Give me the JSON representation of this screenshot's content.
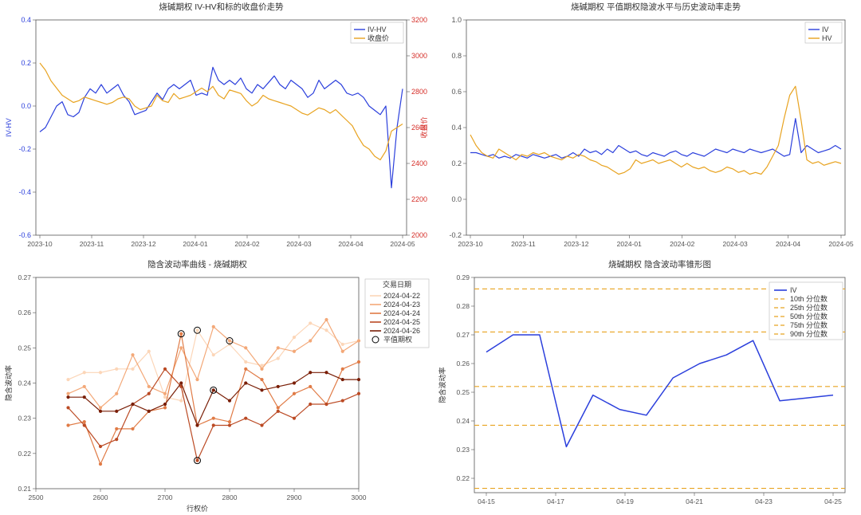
{
  "panel_tl": {
    "title": "烧碱期权 IV-HV和标的收盘价走势",
    "x_labels": [
      "2023-10",
      "2023-11",
      "2023-12",
      "2024-01",
      "2024-02",
      "2024-03",
      "2024-04",
      "2024-05"
    ],
    "y_left": {
      "label": "IV-HV",
      "min": -0.6,
      "max": 0.4,
      "ticks": [
        -0.6,
        -0.4,
        -0.2,
        0.0,
        0.2,
        0.4
      ],
      "color": "#2b3fdc"
    },
    "y_right": {
      "label": "收盘价",
      "min": 2000,
      "max": 3200,
      "ticks": [
        2000,
        2200,
        2400,
        2600,
        2800,
        3000,
        3200
      ],
      "color": "#d6302a"
    },
    "series": [
      {
        "name": "IV-HV",
        "color": "#2b3fdc",
        "axis": "left",
        "values": [
          -0.12,
          -0.1,
          -0.05,
          0.0,
          0.02,
          -0.04,
          -0.05,
          -0.03,
          0.04,
          0.08,
          0.06,
          0.1,
          0.06,
          0.08,
          0.1,
          0.05,
          0.02,
          -0.04,
          -0.03,
          -0.02,
          0.02,
          0.06,
          0.03,
          0.08,
          0.1,
          0.08,
          0.1,
          0.12,
          0.05,
          0.06,
          0.05,
          0.18,
          0.12,
          0.1,
          0.12,
          0.1,
          0.13,
          0.08,
          0.06,
          0.1,
          0.08,
          0.11,
          0.14,
          0.1,
          0.08,
          0.12,
          0.1,
          0.08,
          0.04,
          0.06,
          0.12,
          0.08,
          0.1,
          0.12,
          0.1,
          0.06,
          0.05,
          0.06,
          0.04,
          0.0,
          -0.02,
          -0.04,
          0.0,
          -0.38,
          -0.1,
          0.08
        ]
      },
      {
        "name": "收盘价",
        "color": "#e8a320",
        "axis": "right",
        "values": [
          2960,
          2920,
          2860,
          2820,
          2780,
          2760,
          2740,
          2750,
          2770,
          2760,
          2750,
          2740,
          2730,
          2740,
          2760,
          2770,
          2760,
          2720,
          2700,
          2710,
          2720,
          2780,
          2750,
          2740,
          2790,
          2760,
          2770,
          2780,
          2800,
          2820,
          2800,
          2830,
          2780,
          2760,
          2810,
          2800,
          2790,
          2750,
          2720,
          2740,
          2780,
          2760,
          2750,
          2740,
          2730,
          2720,
          2700,
          2680,
          2670,
          2690,
          2710,
          2700,
          2680,
          2700,
          2670,
          2640,
          2610,
          2550,
          2500,
          2480,
          2440,
          2420,
          2470,
          2580,
          2600,
          2620
        ]
      }
    ],
    "legend": [
      "IV-HV",
      "收盘价"
    ]
  },
  "panel_tr": {
    "title": "烧碱期权 平值期权隐波水平与历史波动率走势",
    "x_labels": [
      "2023-10",
      "2023-11",
      "2023-12",
      "2024-01",
      "2024-02",
      "2024-03",
      "2024-04",
      "2024-05"
    ],
    "y": {
      "min": -0.2,
      "max": 1.0,
      "ticks": [
        -0.2,
        0.0,
        0.2,
        0.4,
        0.6,
        0.8,
        1.0
      ]
    },
    "series": [
      {
        "name": "IV",
        "color": "#2b3fdc",
        "values": [
          0.26,
          0.26,
          0.25,
          0.24,
          0.25,
          0.23,
          0.24,
          0.23,
          0.25,
          0.24,
          0.23,
          0.25,
          0.24,
          0.23,
          0.24,
          0.25,
          0.23,
          0.24,
          0.26,
          0.24,
          0.28,
          0.26,
          0.27,
          0.25,
          0.28,
          0.26,
          0.3,
          0.28,
          0.26,
          0.27,
          0.25,
          0.24,
          0.26,
          0.25,
          0.24,
          0.26,
          0.27,
          0.25,
          0.24,
          0.26,
          0.25,
          0.24,
          0.26,
          0.28,
          0.27,
          0.26,
          0.28,
          0.27,
          0.26,
          0.28,
          0.27,
          0.26,
          0.27,
          0.28,
          0.26,
          0.24,
          0.25,
          0.45,
          0.26,
          0.3,
          0.28,
          0.26,
          0.27,
          0.28,
          0.3,
          0.28
        ]
      },
      {
        "name": "HV",
        "color": "#e8a320",
        "values": [
          0.36,
          0.3,
          0.26,
          0.24,
          0.23,
          0.28,
          0.26,
          0.24,
          0.22,
          0.25,
          0.24,
          0.26,
          0.25,
          0.26,
          0.24,
          0.23,
          0.22,
          0.24,
          0.23,
          0.25,
          0.24,
          0.22,
          0.21,
          0.19,
          0.18,
          0.16,
          0.14,
          0.15,
          0.17,
          0.22,
          0.2,
          0.21,
          0.22,
          0.2,
          0.21,
          0.22,
          0.2,
          0.18,
          0.2,
          0.18,
          0.17,
          0.18,
          0.16,
          0.15,
          0.16,
          0.18,
          0.17,
          0.15,
          0.16,
          0.14,
          0.15,
          0.14,
          0.18,
          0.24,
          0.3,
          0.45,
          0.58,
          0.63,
          0.44,
          0.22,
          0.2,
          0.21,
          0.19,
          0.2,
          0.21,
          0.2
        ]
      }
    ],
    "legend": [
      "IV",
      "HV"
    ]
  },
  "panel_bl": {
    "title": "隐含波动率曲线 - 烧碱期权",
    "xlabel": "行权价",
    "ylabel": "隐含波动率",
    "x": {
      "min": 2500,
      "max": 3000,
      "ticks": [
        2500,
        2600,
        2700,
        2800,
        2900,
        3000
      ]
    },
    "y": {
      "min": 0.21,
      "max": 0.27,
      "ticks": [
        0.21,
        0.22,
        0.23,
        0.24,
        0.25,
        0.26,
        0.27
      ]
    },
    "strikes": [
      2550,
      2575,
      2600,
      2625,
      2650,
      2675,
      2700,
      2725,
      2750,
      2775,
      2800,
      2825,
      2850,
      2875,
      2900,
      2925,
      2950,
      2975,
      3000
    ],
    "dates": [
      {
        "name": "2024-04-22",
        "color": "#fcd6b8",
        "values": [
          0.241,
          0.243,
          0.243,
          0.244,
          0.244,
          0.249,
          0.236,
          0.235,
          0.255,
          0.248,
          0.251,
          0.246,
          0.245,
          0.247,
          0.253,
          0.257,
          0.255,
          0.251,
          0.252
        ],
        "atm_idx": 8
      },
      {
        "name": "2024-04-23",
        "color": "#f3a878",
        "values": [
          0.237,
          0.239,
          0.233,
          0.237,
          0.248,
          0.239,
          0.237,
          0.25,
          0.241,
          0.256,
          0.252,
          0.25,
          0.244,
          0.25,
          0.249,
          0.252,
          0.258,
          0.249,
          0.252
        ],
        "atm_idx": 10
      },
      {
        "name": "2024-04-24",
        "color": "#e07b46",
        "values": [
          0.228,
          0.229,
          0.217,
          0.227,
          0.227,
          0.232,
          0.233,
          0.254,
          0.228,
          0.23,
          0.229,
          0.244,
          0.241,
          0.233,
          0.237,
          0.239,
          0.234,
          0.244,
          0.246
        ],
        "atm_idx": 7
      },
      {
        "name": "2024-04-25",
        "color": "#bb4a24",
        "values": [
          0.233,
          0.228,
          0.222,
          0.224,
          0.234,
          0.237,
          0.244,
          0.239,
          0.218,
          0.228,
          0.228,
          0.23,
          0.228,
          0.232,
          0.23,
          0.234,
          0.234,
          0.235,
          0.237
        ],
        "atm_idx": 8
      },
      {
        "name": "2024-04-26",
        "color": "#7a1f07",
        "values": [
          0.236,
          0.236,
          0.232,
          0.232,
          0.234,
          0.232,
          0.234,
          0.24,
          0.228,
          0.238,
          0.235,
          0.24,
          0.238,
          0.239,
          0.24,
          0.243,
          0.243,
          0.241,
          0.241
        ],
        "atm_idx": 9
      }
    ],
    "legend_title": "交易日期",
    "legend_atm": "平值期权"
  },
  "panel_br": {
    "title": "烧碱期权 隐含波动率锥形图",
    "ylabel": "隐含波动率",
    "x_labels": [
      "04-15",
      "04-17",
      "04-19",
      "04-21",
      "04-23",
      "04-25"
    ],
    "y": {
      "min": 0.215,
      "max": 0.29,
      "ticks": [
        0.22,
        0.23,
        0.24,
        0.25,
        0.26,
        0.27,
        0.28,
        0.29
      ]
    },
    "iv": {
      "color": "#2b3fdc",
      "values": [
        0.264,
        0.27,
        0.27,
        0.231,
        0.249,
        0.244,
        0.242,
        0.255,
        0.26,
        0.263,
        0.268,
        0.247,
        0.248,
        0.249
      ]
    },
    "percentiles": [
      {
        "name": "10th 分位数",
        "color": "#e8a320",
        "value": 0.2165
      },
      {
        "name": "25th 分位数",
        "color": "#e8a320",
        "value": 0.2385
      },
      {
        "name": "50th 分位数",
        "color": "#e8a320",
        "value": 0.252
      },
      {
        "name": "75th 分位数",
        "color": "#e8a320",
        "value": 0.271
      },
      {
        "name": "90th 分位数",
        "color": "#e8a320",
        "value": 0.286
      }
    ],
    "legend": [
      "IV",
      "10th 分位数",
      "25th 分位数",
      "50th 分位数",
      "75th 分位数",
      "90th 分位数"
    ]
  },
  "colors": {
    "grid": "#888",
    "frame": "#000",
    "iv": "#2b3fdc",
    "hv": "#e8a320"
  }
}
